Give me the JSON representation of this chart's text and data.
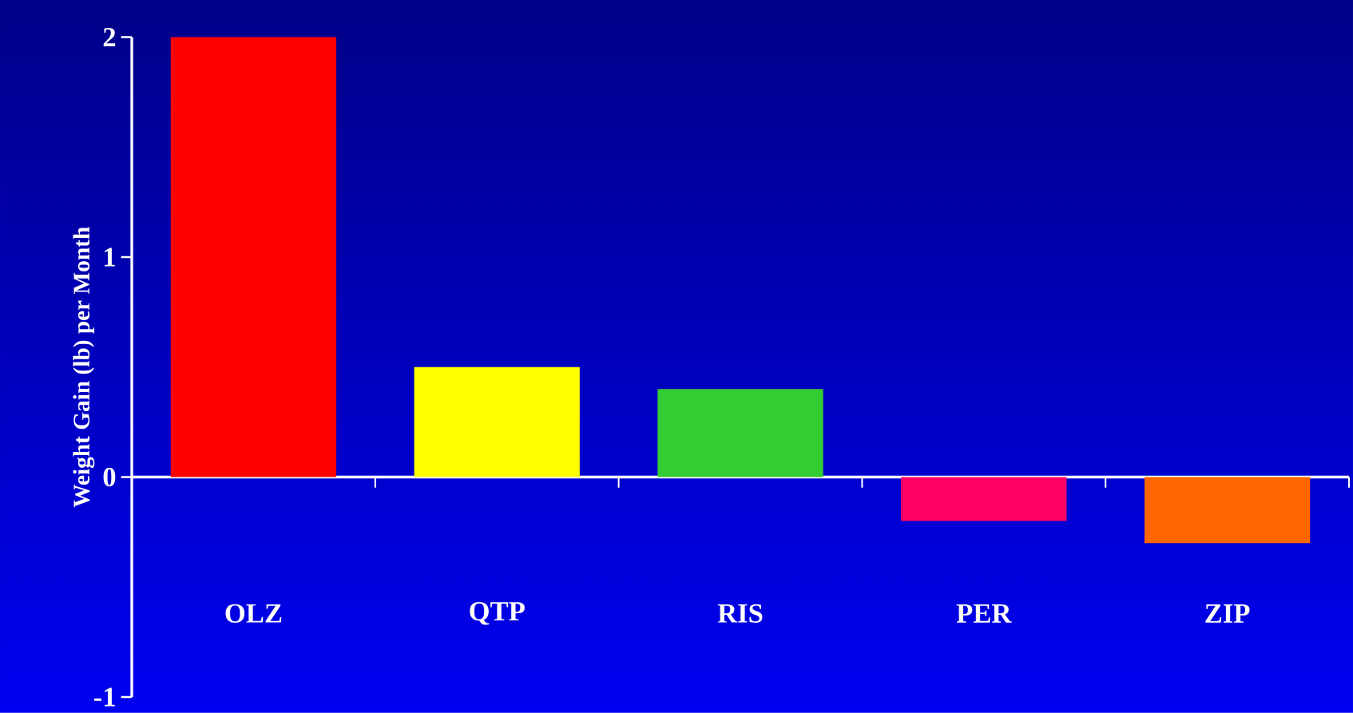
{
  "chart_data": {
    "type": "bar",
    "ylabel": "Weight Gain (lb) per Month",
    "categories": [
      "OLZ",
      "QTP",
      "RIS",
      "PER",
      "ZIP"
    ],
    "values": [
      2,
      0.5,
      0.4,
      -0.2,
      -0.3
    ],
    "colors": [
      "#ff0000",
      "#ffff00",
      "#33cc33",
      "#ff0066",
      "#ff6600"
    ],
    "ylim": [
      -1,
      2
    ],
    "yticks": [
      -1,
      0,
      1,
      2
    ]
  }
}
